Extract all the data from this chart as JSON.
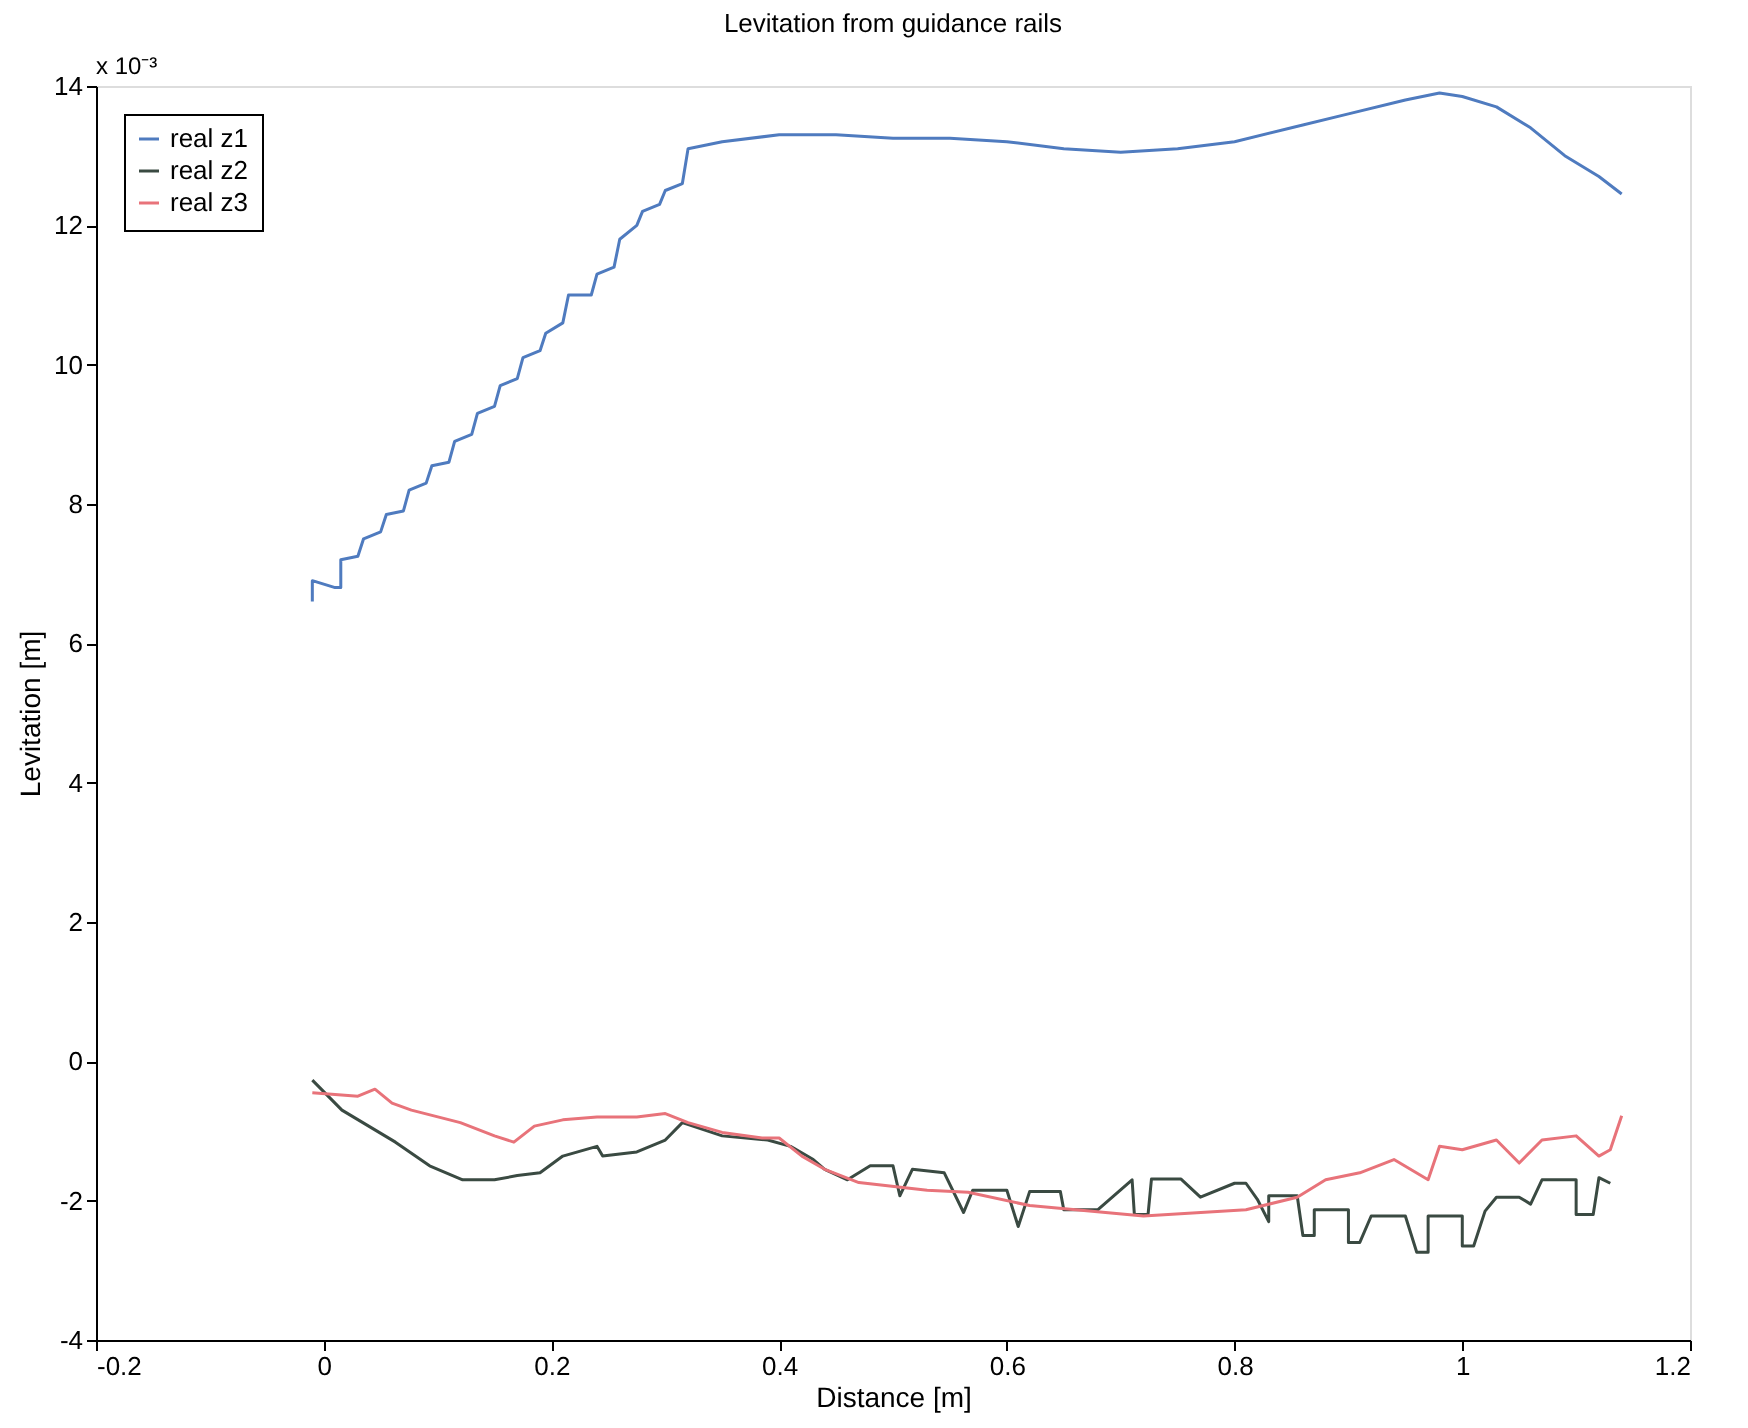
{
  "chart_data": {
    "type": "line",
    "title": "Levitation from guidance rails",
    "xlabel": "Distance [m]",
    "ylabel": "Levitation [m]",
    "annotations": [
      "x 10⁻³"
    ],
    "xlim": [
      -0.2,
      1.2
    ],
    "xticks": [
      -0.2,
      0,
      0.2,
      0.4,
      0.6,
      0.8,
      1,
      1.2
    ],
    "ylim": [
      -4,
      14
    ],
    "yticks": [
      -4,
      -2,
      0,
      2,
      4,
      6,
      8,
      10,
      12,
      14
    ],
    "grid": false,
    "legend": "top left",
    "marker": "none",
    "line_style": "solid",
    "series": [
      {
        "name": "real z1",
        "color": "#4f7bbf",
        "x": [
          -0.01,
          -0.01,
          0.01,
          0.015,
          0.015,
          0.03,
          0.035,
          0.05,
          0.055,
          0.07,
          0.075,
          0.09,
          0.095,
          0.11,
          0.115,
          0.13,
          0.135,
          0.15,
          0.155,
          0.17,
          0.175,
          0.19,
          0.195,
          0.21,
          0.215,
          0.235,
          0.24,
          0.255,
          0.26,
          0.275,
          0.28,
          0.295,
          0.3,
          0.315,
          0.32,
          0.35,
          0.4,
          0.45,
          0.5,
          0.55,
          0.6,
          0.65,
          0.7,
          0.75,
          0.8,
          0.85,
          0.9,
          0.95,
          0.98,
          1.0,
          1.03,
          1.06,
          1.09,
          1.12,
          1.14
        ],
        "values": [
          6.6,
          6.9,
          6.8,
          6.8,
          7.2,
          7.25,
          7.5,
          7.6,
          7.85,
          7.9,
          8.2,
          8.3,
          8.55,
          8.6,
          8.9,
          9.0,
          9.3,
          9.4,
          9.7,
          9.8,
          10.1,
          10.2,
          10.45,
          10.6,
          11.0,
          11.0,
          11.3,
          11.4,
          11.8,
          12.0,
          12.2,
          12.3,
          12.5,
          12.6,
          13.1,
          13.2,
          13.3,
          13.3,
          13.25,
          13.25,
          13.2,
          13.1,
          13.05,
          13.1,
          13.2,
          13.4,
          13.6,
          13.8,
          13.9,
          13.85,
          13.7,
          13.4,
          13.0,
          12.7,
          12.45
        ]
      },
      {
        "name": "real z2",
        "color": "#3a4a42",
        "x": [
          -0.01,
          0.016,
          0.063,
          0.093,
          0.122,
          0.15,
          0.17,
          0.19,
          0.21,
          0.24,
          0.245,
          0.275,
          0.3,
          0.315,
          0.35,
          0.39,
          0.41,
          0.43,
          0.44,
          0.46,
          0.48,
          0.5,
          0.506,
          0.517,
          0.545,
          0.562,
          0.57,
          0.6,
          0.61,
          0.62,
          0.647,
          0.65,
          0.68,
          0.71,
          0.712,
          0.724,
          0.727,
          0.753,
          0.77,
          0.8,
          0.81,
          0.82,
          0.83,
          0.83,
          0.855,
          0.86,
          0.87,
          0.87,
          0.9,
          0.9,
          0.91,
          0.92,
          0.95,
          0.96,
          0.97,
          0.97,
          1.0,
          1.0,
          1.01,
          1.02,
          1.03,
          1.05,
          1.06,
          1.07,
          1.1,
          1.1,
          1.115,
          1.12,
          1.13
        ],
        "values": [
          -0.27,
          -0.7,
          -1.16,
          -1.5,
          -1.7,
          -1.7,
          -1.64,
          -1.6,
          -1.36,
          -1.22,
          -1.36,
          -1.3,
          -1.13,
          -0.88,
          -1.07,
          -1.13,
          -1.22,
          -1.41,
          -1.55,
          -1.7,
          -1.5,
          -1.5,
          -1.93,
          -1.55,
          -1.6,
          -2.17,
          -1.85,
          -1.85,
          -2.37,
          -1.87,
          -1.87,
          -2.13,
          -2.13,
          -1.7,
          -2.2,
          -2.2,
          -1.69,
          -1.69,
          -1.95,
          -1.75,
          -1.75,
          -1.98,
          -2.3,
          -1.93,
          -1.93,
          -2.5,
          -2.5,
          -2.13,
          -2.13,
          -2.6,
          -2.6,
          -2.22,
          -2.22,
          -2.74,
          -2.74,
          -2.22,
          -2.22,
          -2.65,
          -2.65,
          -2.15,
          -1.95,
          -1.95,
          -2.05,
          -1.7,
          -1.7,
          -2.2,
          -2.2,
          -1.67,
          -1.75
        ]
      },
      {
        "name": "real z3",
        "color": "#e8737a",
        "x": [
          -0.01,
          0.03,
          0.045,
          0.06,
          0.077,
          0.12,
          0.15,
          0.167,
          0.185,
          0.21,
          0.24,
          0.275,
          0.3,
          0.32,
          0.35,
          0.385,
          0.4,
          0.42,
          0.44,
          0.47,
          0.53,
          0.566,
          0.62,
          0.72,
          0.81,
          0.855,
          0.88,
          0.91,
          0.94,
          0.97,
          0.98,
          1.0,
          1.03,
          1.05,
          1.07,
          1.1,
          1.12,
          1.13,
          1.14
        ],
        "values": [
          -0.45,
          -0.5,
          -0.4,
          -0.6,
          -0.7,
          -0.88,
          -1.07,
          -1.16,
          -0.93,
          -0.84,
          -0.8,
          -0.8,
          -0.75,
          -0.88,
          -1.02,
          -1.1,
          -1.1,
          -1.36,
          -1.55,
          -1.74,
          -1.85,
          -1.88,
          -2.07,
          -2.22,
          -2.13,
          -1.95,
          -1.7,
          -1.6,
          -1.41,
          -1.7,
          -1.22,
          -1.27,
          -1.13,
          -1.46,
          -1.13,
          -1.07,
          -1.36,
          -1.27,
          -0.78
        ]
      }
    ]
  }
}
